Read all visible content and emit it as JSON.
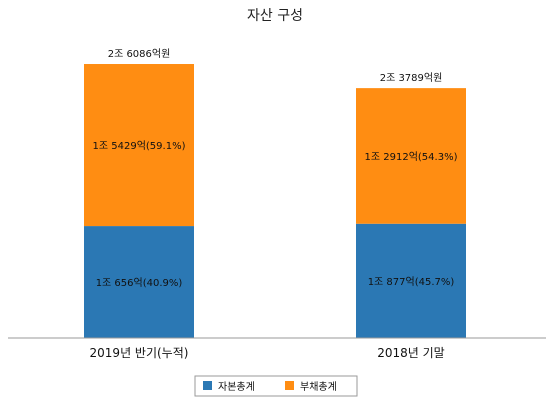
{
  "chart_data": {
    "type": "bar",
    "stacked": true,
    "title": "자산 구성",
    "categories": [
      "2019년 반기(누적)",
      "2018년 기말"
    ],
    "totals": [
      26086,
      23789
    ],
    "total_labels": [
      "2조 6086억원",
      "2조 3789억원"
    ],
    "series": [
      {
        "name": "자본총계",
        "color": "#2b78b4",
        "values": [
          10656,
          10877
        ],
        "labels": [
          "1조 656억(40.9%)",
          "1조 877억(45.7%)"
        ]
      },
      {
        "name": "부채총계",
        "color": "#ff8d12",
        "values": [
          15429,
          12912
        ],
        "labels": [
          "1조 5429억(59.1%)",
          "1조 2912억(54.3%)"
        ]
      }
    ],
    "legend_position": "bottom",
    "grid": false
  }
}
